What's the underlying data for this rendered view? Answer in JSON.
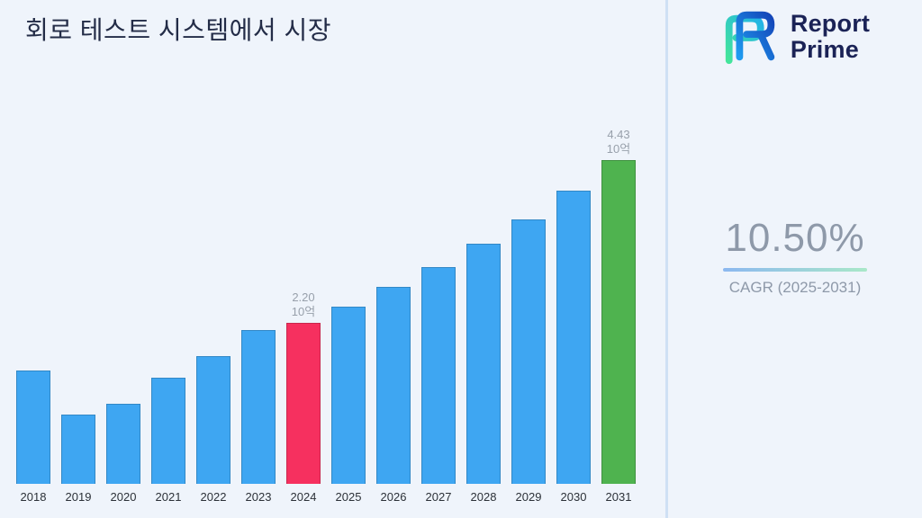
{
  "page": {
    "background": "#eff4fb"
  },
  "title": "회로 테스트 시스템에서 시장",
  "brand": {
    "name_line1": "Report",
    "name_line2": "Prime"
  },
  "stats": {
    "cagr_value": "10.50%",
    "cagr_label": "CAGR (2025-2031)"
  },
  "chart_data": {
    "type": "bar",
    "title": "회로 테스트 시스템에서 시장",
    "categories": [
      "2018",
      "2019",
      "2020",
      "2021",
      "2022",
      "2023",
      "2024",
      "2025",
      "2026",
      "2027",
      "2028",
      "2029",
      "2030",
      "2031"
    ],
    "values": [
      1.55,
      0.95,
      1.1,
      1.45,
      1.75,
      2.1,
      2.2,
      2.43,
      2.69,
      2.97,
      3.28,
      3.62,
      4.01,
      4.43
    ],
    "unit": "10억",
    "ylim": [
      0,
      4.43
    ],
    "grid": false,
    "legend": false,
    "annotations": {
      "2024": [
        "2.20",
        "10억"
      ],
      "2031": [
        "4.43",
        "10억"
      ]
    },
    "colors": {
      "default": "#3EA6F2",
      "2024": "#F6305F",
      "2031": "#4FB34F"
    }
  }
}
